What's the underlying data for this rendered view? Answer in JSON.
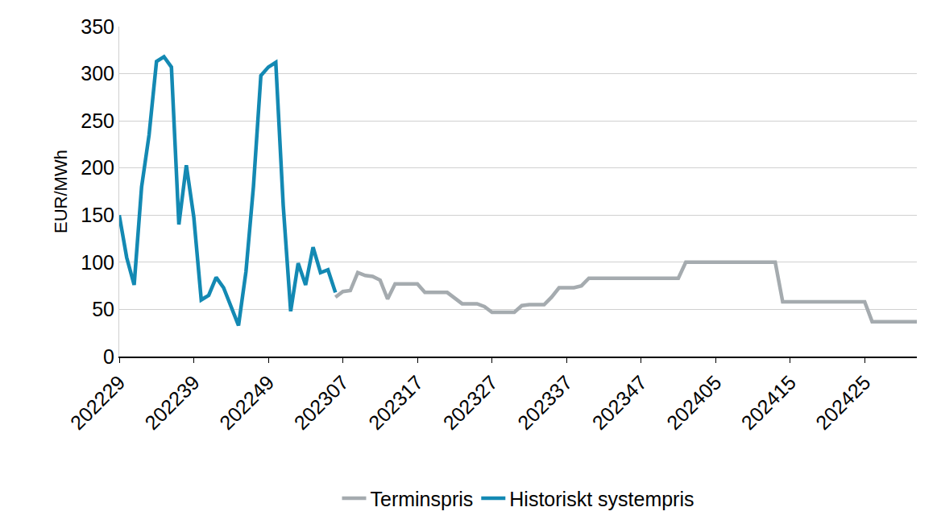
{
  "chart_data": {
    "type": "line",
    "y_label": "EUR/MWh",
    "categories": [
      "202229",
      null,
      null,
      null,
      null,
      null,
      null,
      null,
      null,
      null,
      "202239",
      null,
      null,
      null,
      null,
      null,
      null,
      null,
      null,
      null,
      "202249",
      null,
      null,
      null,
      null,
      null,
      null,
      null,
      null,
      null,
      "202307",
      null,
      null,
      null,
      null,
      null,
      null,
      null,
      null,
      null,
      "202317",
      null,
      null,
      null,
      null,
      null,
      null,
      null,
      null,
      null,
      "202327",
      null,
      null,
      null,
      null,
      null,
      null,
      null,
      null,
      null,
      "202337",
      null,
      null,
      null,
      null,
      null,
      null,
      null,
      null,
      null,
      "202347",
      null,
      null,
      null,
      null,
      null,
      null,
      null,
      null,
      null,
      "202405",
      null,
      null,
      null,
      null,
      null,
      null,
      null,
      null,
      null,
      "202415",
      null,
      null,
      null,
      null,
      null,
      null,
      null,
      null,
      null,
      "202425",
      null,
      null,
      null,
      null,
      null,
      null,
      null
    ],
    "series": [
      {
        "name": "Terminspris",
        "color": "#a5abaf",
        "values": [
          null,
          null,
          null,
          null,
          null,
          null,
          null,
          null,
          null,
          null,
          null,
          null,
          null,
          null,
          null,
          null,
          null,
          null,
          null,
          null,
          null,
          null,
          null,
          null,
          null,
          null,
          null,
          null,
          null,
          63,
          69,
          70,
          89,
          86,
          85,
          81,
          61,
          77,
          77,
          77,
          77,
          68,
          68,
          68,
          68,
          62,
          56,
          56,
          56,
          53,
          47,
          47,
          47,
          47,
          54,
          55,
          55,
          55,
          63,
          73,
          73,
          73,
          75,
          83,
          83,
          83,
          83,
          83,
          83,
          83,
          83,
          83,
          83,
          83,
          83,
          83,
          100,
          100,
          100,
          100,
          100,
          100,
          100,
          100,
          100,
          100,
          100,
          100,
          100,
          58,
          58,
          58,
          58,
          58,
          58,
          58,
          58,
          58,
          58,
          58,
          58,
          37,
          37,
          37,
          37,
          37,
          37,
          37
        ]
      },
      {
        "name": "Historiskt systempris",
        "color": "#1389b3",
        "values": [
          150,
          105,
          76,
          180,
          235,
          313,
          318,
          307,
          140,
          203,
          148,
          60,
          65,
          84,
          73,
          52,
          33,
          90,
          180,
          298,
          307,
          312,
          160,
          48,
          99,
          76,
          116,
          89,
          92,
          68,
          null,
          null,
          null,
          null,
          null,
          null,
          null,
          null,
          null,
          null,
          null,
          null,
          null,
          null,
          null,
          null,
          null,
          null,
          null,
          null,
          null,
          null,
          null,
          null,
          null,
          null,
          null,
          null,
          null,
          null,
          null,
          null,
          null,
          null,
          null,
          null,
          null,
          null,
          null,
          null,
          null,
          null,
          null,
          null,
          null,
          null,
          null,
          null,
          null,
          null,
          null,
          null,
          null,
          null,
          null,
          null,
          null,
          null,
          null,
          null,
          null,
          null,
          null,
          null,
          null,
          null,
          null,
          null,
          null,
          null,
          null,
          null,
          null,
          null,
          null,
          null,
          null,
          null
        ]
      }
    ],
    "ylim": [
      0,
      350
    ],
    "yticks": [
      0,
      50,
      100,
      150,
      200,
      250,
      300,
      350
    ],
    "grid": true,
    "legend": "bottom"
  }
}
